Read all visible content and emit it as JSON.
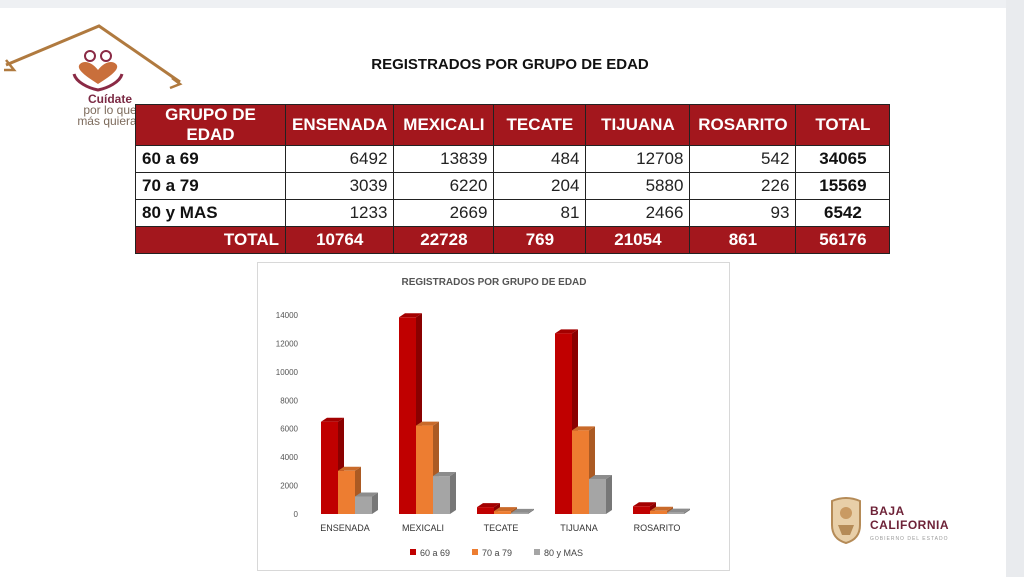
{
  "logo": {
    "line1": "Cuídate",
    "line2": "por lo que",
    "line3": "más quieras"
  },
  "title": "REGISTRADOS POR GRUPO DE EDAD",
  "table": {
    "headers": [
      "GRUPO DE EDAD",
      "ENSENADA",
      "MEXICALI",
      "TECATE",
      "TIJUANA",
      "ROSARITO",
      "TOTAL"
    ],
    "rows": [
      {
        "label": "60 a 69",
        "values": [
          "6492",
          "13839",
          "484",
          "12708",
          "542"
        ],
        "total": "34065"
      },
      {
        "label": "70 a 79",
        "values": [
          "3039",
          "6220",
          "204",
          "5880",
          "226"
        ],
        "total": "15569"
      },
      {
        "label": "80 y MAS",
        "values": [
          "1233",
          "2669",
          "81",
          "2466",
          "93"
        ],
        "total": "6542"
      }
    ],
    "total_row": {
      "label": "TOTAL",
      "values": [
        "10764",
        "22728",
        "769",
        "21054",
        "861"
      ],
      "total": "56176"
    }
  },
  "chart_data": {
    "type": "bar",
    "title": "REGISTRADOS POR GRUPO DE EDAD",
    "categories": [
      "ENSENADA",
      "MEXICALI",
      "TECATE",
      "TIJUANA",
      "ROSARITO"
    ],
    "series": [
      {
        "name": "60 a 69",
        "values": [
          6492,
          13839,
          484,
          12708,
          542
        ],
        "color": "#c00000"
      },
      {
        "name": "70 a 79",
        "values": [
          3039,
          6220,
          204,
          5880,
          226
        ],
        "color": "#ed7d31"
      },
      {
        "name": "80 y MAS",
        "values": [
          1233,
          2669,
          81,
          2466,
          93
        ],
        "color": "#a5a5a5"
      }
    ],
    "ylim": [
      0,
      14000
    ],
    "yticks": [
      "0",
      "2000",
      "4000",
      "6000",
      "8000",
      "10000",
      "12000",
      "14000"
    ],
    "grid": false,
    "legend": "bottom",
    "style": "3d-column"
  },
  "bc_logo": {
    "line1": "BAJA",
    "line2": "CALIFORNIA",
    "sub": "GOBIERNO DEL ESTADO"
  },
  "colors": {
    "header_red": "#a3171d",
    "brand": "#6e2338"
  }
}
